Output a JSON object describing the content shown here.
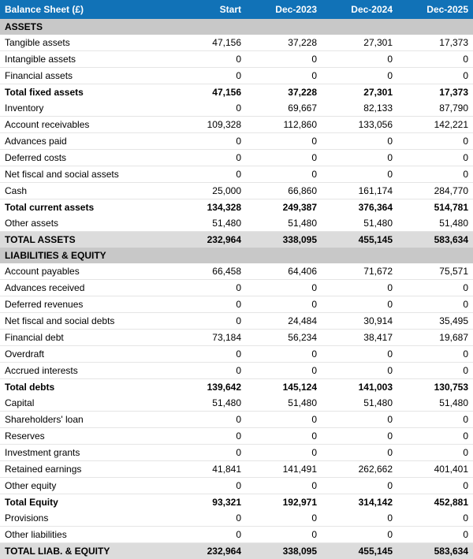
{
  "colors": {
    "header_bg": "#1172b7",
    "header_text": "#ffffff",
    "section_bg": "#c8c8c8",
    "total_bg": "#dcdcdc",
    "row_border": "#e5e5e5",
    "text": "#000000"
  },
  "table": {
    "header": [
      "Balance Sheet (£)",
      "Start",
      "Dec-2023",
      "Dec-2024",
      "Dec-2025"
    ],
    "rows": [
      {
        "type": "section",
        "cells": [
          "ASSETS",
          "",
          "",
          "",
          ""
        ]
      },
      {
        "type": "normal",
        "cells": [
          "Tangible assets",
          "47,156",
          "37,228",
          "27,301",
          "17,373"
        ]
      },
      {
        "type": "normal",
        "cells": [
          "Intangible assets",
          "0",
          "0",
          "0",
          "0"
        ]
      },
      {
        "type": "normal",
        "cells": [
          "Financial assets",
          "0",
          "0",
          "0",
          "0"
        ]
      },
      {
        "type": "bold",
        "cells": [
          "Total fixed assets",
          "47,156",
          "37,228",
          "27,301",
          "17,373"
        ]
      },
      {
        "type": "normal",
        "cells": [
          "Inventory",
          "0",
          "69,667",
          "82,133",
          "87,790"
        ]
      },
      {
        "type": "normal",
        "cells": [
          "Account receivables",
          "109,328",
          "112,860",
          "133,056",
          "142,221"
        ]
      },
      {
        "type": "normal",
        "cells": [
          "Advances paid",
          "0",
          "0",
          "0",
          "0"
        ]
      },
      {
        "type": "normal",
        "cells": [
          "Deferred costs",
          "0",
          "0",
          "0",
          "0"
        ]
      },
      {
        "type": "normal",
        "cells": [
          "Net fiscal and social assets",
          "0",
          "0",
          "0",
          "0"
        ]
      },
      {
        "type": "normal",
        "cells": [
          "Cash",
          "25,000",
          "66,860",
          "161,174",
          "284,770"
        ]
      },
      {
        "type": "bold",
        "cells": [
          "Total current assets",
          "134,328",
          "249,387",
          "376,364",
          "514,781"
        ]
      },
      {
        "type": "normal",
        "cells": [
          "Other assets",
          "51,480",
          "51,480",
          "51,480",
          "51,480"
        ]
      },
      {
        "type": "total",
        "cells": [
          "TOTAL ASSETS",
          "232,964",
          "338,095",
          "455,145",
          "583,634"
        ]
      },
      {
        "type": "section",
        "cells": [
          "LIABILITIES & EQUITY",
          "",
          "",
          "",
          ""
        ]
      },
      {
        "type": "normal",
        "cells": [
          "Account payables",
          "66,458",
          "64,406",
          "71,672",
          "75,571"
        ]
      },
      {
        "type": "normal",
        "cells": [
          "Advances received",
          "0",
          "0",
          "0",
          "0"
        ]
      },
      {
        "type": "normal",
        "cells": [
          "Deferred revenues",
          "0",
          "0",
          "0",
          "0"
        ]
      },
      {
        "type": "normal",
        "cells": [
          "Net fiscal and social debts",
          "0",
          "24,484",
          "30,914",
          "35,495"
        ]
      },
      {
        "type": "normal",
        "cells": [
          "Financial debt",
          "73,184",
          "56,234",
          "38,417",
          "19,687"
        ]
      },
      {
        "type": "normal",
        "cells": [
          "Overdraft",
          "0",
          "0",
          "0",
          "0"
        ]
      },
      {
        "type": "normal",
        "cells": [
          "Accrued interests",
          "0",
          "0",
          "0",
          "0"
        ]
      },
      {
        "type": "bold",
        "cells": [
          "Total debts",
          "139,642",
          "145,124",
          "141,003",
          "130,753"
        ]
      },
      {
        "type": "normal",
        "cells": [
          "Capital",
          "51,480",
          "51,480",
          "51,480",
          "51,480"
        ]
      },
      {
        "type": "normal",
        "cells": [
          "Shareholders' loan",
          "0",
          "0",
          "0",
          "0"
        ]
      },
      {
        "type": "normal",
        "cells": [
          "Reserves",
          "0",
          "0",
          "0",
          "0"
        ]
      },
      {
        "type": "normal",
        "cells": [
          "Investment grants",
          "0",
          "0",
          "0",
          "0"
        ]
      },
      {
        "type": "normal",
        "cells": [
          "Retained earnings",
          "41,841",
          "141,491",
          "262,662",
          "401,401"
        ]
      },
      {
        "type": "normal",
        "cells": [
          "Other equity",
          "0",
          "0",
          "0",
          "0"
        ]
      },
      {
        "type": "bold",
        "cells": [
          "Total Equity",
          "93,321",
          "192,971",
          "314,142",
          "452,881"
        ]
      },
      {
        "type": "normal",
        "cells": [
          "Provisions",
          "0",
          "0",
          "0",
          "0"
        ]
      },
      {
        "type": "normal",
        "cells": [
          "Other liabilities",
          "0",
          "0",
          "0",
          "0"
        ]
      },
      {
        "type": "total",
        "cells": [
          "TOTAL LIAB. & EQUITY",
          "232,964",
          "338,095",
          "455,145",
          "583,634"
        ]
      }
    ]
  }
}
